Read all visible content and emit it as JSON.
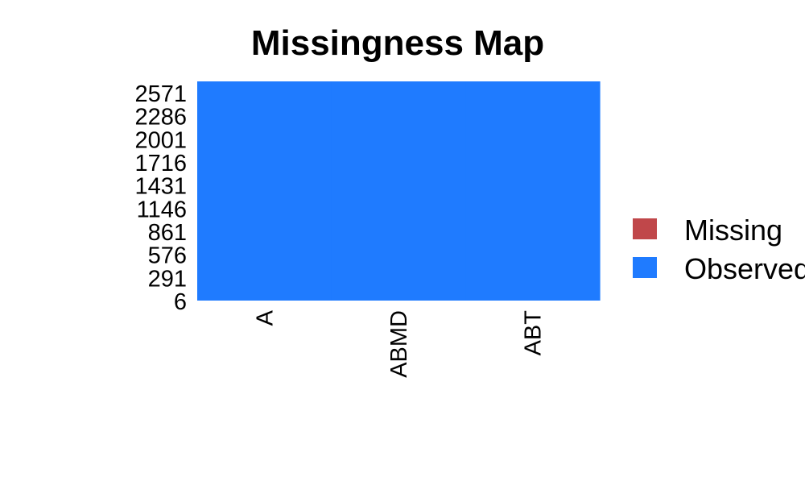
{
  "chart_data": {
    "type": "heatmap",
    "title": "Missingness Map",
    "columns": [
      "A",
      "ABMD",
      "ABT"
    ],
    "row_tick_labels": [
      "2571",
      "2286",
      "2001",
      "1716",
      "1431",
      "1146",
      "861",
      "576",
      "291",
      "6"
    ],
    "row_range": [
      6,
      2571
    ],
    "values": [
      {
        "column": "A",
        "status": "Observed",
        "missing_fraction": 0
      },
      {
        "column": "ABMD",
        "status": "Observed",
        "missing_fraction": 0
      },
      {
        "column": "ABT",
        "status": "Observed",
        "missing_fraction": 0
      }
    ],
    "legend": {
      "placement": "right",
      "entries": [
        {
          "label": "Missing",
          "color": "#c0474a"
        },
        {
          "label": "Observed",
          "color": "#1f7bff"
        }
      ]
    },
    "grid": false
  }
}
